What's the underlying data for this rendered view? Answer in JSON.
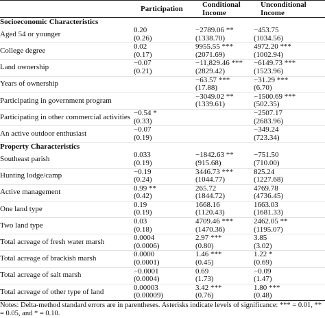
{
  "table": {
    "columns": [
      "Participation",
      "Conditional Income",
      "Unconditional Income"
    ],
    "sections": [
      {
        "title": "Socioeconomic Characteristics",
        "rows": [
          {
            "label": "Aged 54 or younger",
            "cells": [
              [
                "0.20",
                "(0.26)"
              ],
              [
                "−2789.06 **",
                "(1338.70)"
              ],
              [
                "−453.75",
                "(1034.56)"
              ]
            ]
          },
          {
            "label": "College degree",
            "cells": [
              [
                "0.02",
                "(0.17)"
              ],
              [
                "9955.55 ***",
                "(2071.69)"
              ],
              [
                "4972.20 ***",
                "(1002.94)"
              ]
            ]
          },
          {
            "label": "Land ownership",
            "cells": [
              [
                "−0.07",
                "(0.21)"
              ],
              [
                "−11,829.46 ***",
                "(2829.42)"
              ],
              [
                "−6149.73 ***",
                "(1523.96)"
              ]
            ]
          },
          {
            "label": "Years of ownership",
            "cells": [
              null,
              [
                "−63.57 ***",
                "(17.88)"
              ],
              [
                "−31.29 ***",
                "(6.70)"
              ]
            ]
          },
          {
            "label": "Participating in government program",
            "cells": [
              null,
              [
                "−3049.02 **",
                "(1339.61)"
              ],
              [
                "−1500.69 ***",
                "(502.35)"
              ]
            ]
          },
          {
            "label": "Participating in other commercial activities",
            "cells": [
              [
                "−0.54 *",
                "(0.33)"
              ],
              null,
              [
                "−2507.17",
                "(2683.96)"
              ]
            ]
          },
          {
            "label": "An active outdoor enthusiast",
            "cells": [
              [
                "−0.07",
                "(0.19)"
              ],
              null,
              [
                "−349.24",
                "(723.34)"
              ]
            ]
          }
        ]
      },
      {
        "title": "Property Characteristics",
        "rows": [
          {
            "label": "Southeast parish",
            "cells": [
              [
                "0.033",
                "(0.19)"
              ],
              [
                "−1842.63 **",
                "(915.68)"
              ],
              [
                "−751.50",
                "(710.00)"
              ]
            ]
          },
          {
            "label": "Hunting lodge/camp",
            "cells": [
              [
                "−0.19",
                "(0.24)"
              ],
              [
                "3446.73 ***",
                "(1044.77)"
              ],
              [
                "825.24",
                "(1227.68)"
              ]
            ]
          },
          {
            "label": "Active management",
            "cells": [
              [
                "0.99 **",
                "(0.42)"
              ],
              [
                "265.72",
                "(1844.72)"
              ],
              [
                "4769.78",
                "(4736.45)"
              ]
            ]
          },
          {
            "label": "One land type",
            "cells": [
              [
                "0.19",
                "(0.19)"
              ],
              [
                "1668.16",
                "(1120.43)"
              ],
              [
                "1663.03",
                "(1681.33)"
              ]
            ]
          },
          {
            "label": "Two land type",
            "cells": [
              [
                "0.03",
                "(0.18)"
              ],
              [
                "4709.46 ***",
                "(1470.36)"
              ],
              [
                "2462.05 **",
                "(1195.07)"
              ]
            ]
          },
          {
            "label": "Total acreage of fresh water marsh",
            "cells": [
              [
                "0.0004",
                "(0.0006)"
              ],
              [
                "2.97 ***",
                "(0.80)"
              ],
              [
                "3.85",
                "(3.02)"
              ]
            ]
          },
          {
            "label": "Total acreage of brackish marsh",
            "cells": [
              [
                "0.0000",
                "(0.0001)"
              ],
              [
                "1.46 ***",
                "(0.45)"
              ],
              [
                "1.22 *",
                "(0.69)"
              ]
            ]
          },
          {
            "label": "Total acreage of salt marsh",
            "cells": [
              [
                "−0.0001",
                "(0.0004)"
              ],
              [
                "0.69",
                "(1.73)"
              ],
              [
                "−0.09",
                "(1.47)"
              ]
            ]
          },
          {
            "label": "Total acreage of other type of land",
            "cells": [
              [
                "0.00003",
                "(0.00009)"
              ],
              [
                "3.42 ***",
                "(0.76)"
              ],
              [
                "1.80 ***",
                "(0.48)"
              ]
            ]
          }
        ]
      }
    ],
    "notes": "Notes: Delta-method standard errors are in parentheses. Asterisks indicate levels of significance: *** = 0.01, ** = 0.05, and * = 0.10."
  }
}
